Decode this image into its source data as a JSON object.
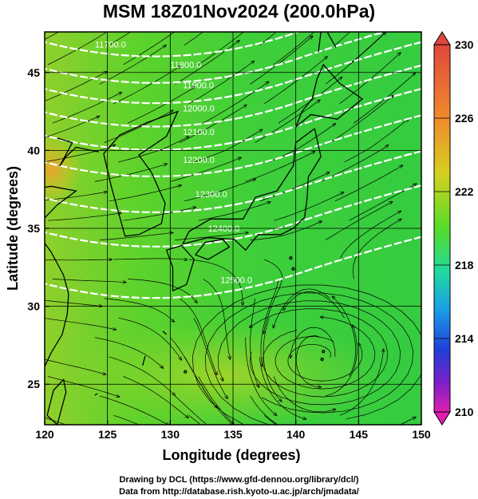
{
  "title": "MSM 18Z01Nov2024 (200.0hPa)",
  "footer": {
    "line1": "Drawing by DCL (https://www.gfd-dennou.org/library/dcl/)",
    "line2": "Data from http://database.rish.kyoto-u.ac.jp/arch/jmadata/"
  },
  "map": {
    "xlabel": "Longitude (degrees)",
    "ylabel": "Latitude  (degrees)",
    "xticks": [
      "120",
      "125",
      "130",
      "135",
      "140",
      "145",
      "150"
    ],
    "yticks": [
      "25",
      "30",
      "35",
      "40",
      "45"
    ],
    "lon_range": [
      120,
      150
    ],
    "lat_range": [
      22.4,
      47.6
    ],
    "field": "temperature (colour shading) with streamlines and geopotential height contours",
    "contour_labels": [
      "11700.0",
      "11800.0",
      "11900.0",
      "12000.0",
      "12100.0",
      "12200.0",
      "12300.0",
      "12400.0",
      "12500.0"
    ],
    "cyclone_center": {
      "lon": 141.7,
      "lat": 26.7
    }
  },
  "colorbar": {
    "min": 210,
    "max": 230,
    "labels": [
      "230",
      "226",
      "222",
      "218",
      "214",
      "210"
    ],
    "colors": [
      "#e0483c",
      "#f08a2c",
      "#d6d020",
      "#55dc28",
      "#22d8a0",
      "#1aa0e8",
      "#1f3fd8",
      "#7d1fc8",
      "#e01fb0"
    ]
  }
}
